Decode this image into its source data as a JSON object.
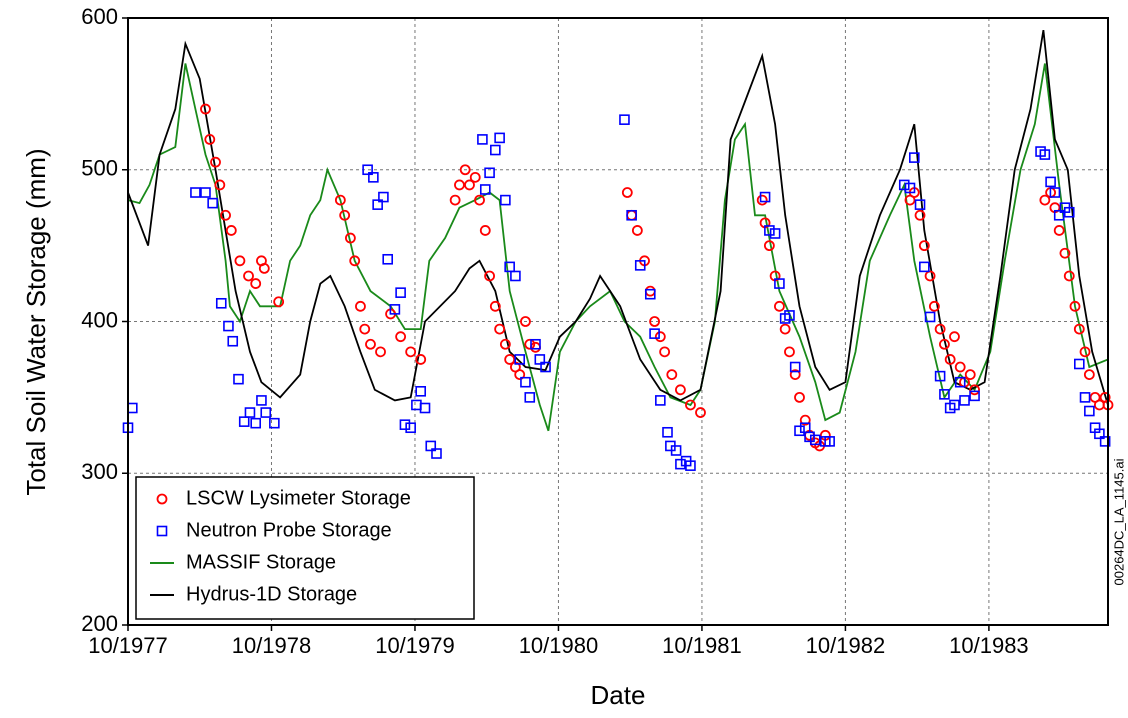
{
  "chart_data": {
    "type": "mixed",
    "xlabel": "Date",
    "ylabel": "Total Soil Water Storage (mm)",
    "annotation": "00264DC_LA_1145.ai",
    "xlim": [
      1977.75,
      1984.58
    ],
    "ylim": [
      200,
      600
    ],
    "xticks": [
      {
        "value": 1977.75,
        "label": "10/1977"
      },
      {
        "value": 1978.75,
        "label": "10/1978"
      },
      {
        "value": 1979.75,
        "label": "10/1979"
      },
      {
        "value": 1980.75,
        "label": "10/1980"
      },
      {
        "value": 1981.75,
        "label": "10/1981"
      },
      {
        "value": 1982.75,
        "label": "10/1982"
      },
      {
        "value": 1983.75,
        "label": "10/1983"
      }
    ],
    "yticks": [
      200,
      300,
      400,
      500,
      600
    ],
    "grid": true,
    "legend": "lower left",
    "series": [
      {
        "name": "LSCW Lysimeter Storage",
        "color": "#ff0000",
        "marker": "circle",
        "x": [
          1978.29,
          1978.32,
          1978.36,
          1978.39,
          1978.43,
          1978.47,
          1978.53,
          1978.59,
          1978.64,
          1978.68,
          1978.7,
          1978.8,
          1979.23,
          1979.26,
          1979.3,
          1979.33,
          1979.37,
          1979.4,
          1979.44,
          1979.51,
          1979.58,
          1979.65,
          1979.72,
          1979.79,
          1980.03,
          1980.06,
          1980.1,
          1980.13,
          1980.17,
          1980.2,
          1980.24,
          1980.27,
          1980.31,
          1980.34,
          1980.38,
          1980.41,
          1980.45,
          1980.48,
          1980.52,
          1980.55,
          1980.59,
          1981.23,
          1981.26,
          1981.3,
          1981.35,
          1981.39,
          1981.42,
          1981.46,
          1981.49,
          1981.54,
          1981.6,
          1981.67,
          1981.74,
          1982.17,
          1982.19,
          1982.22,
          1982.26,
          1982.29,
          1982.33,
          1982.36,
          1982.4,
          1982.43,
          1982.47,
          1982.5,
          1982.54,
          1982.57,
          1982.61,
          1983.2,
          1983.23,
          1983.27,
          1983.3,
          1983.34,
          1983.37,
          1983.41,
          1983.44,
          1983.48,
          1983.51,
          1983.55,
          1983.58,
          1983.62,
          1983.65,
          1984.14,
          1984.18,
          1984.21,
          1984.24,
          1984.28,
          1984.31,
          1984.35,
          1984.38,
          1984.42,
          1984.45,
          1984.49,
          1984.52,
          1984.56,
          1984.58
        ],
        "values": [
          540,
          520,
          505,
          490,
          470,
          460,
          440,
          430,
          425,
          440,
          435,
          413,
          480,
          470,
          455,
          440,
          410,
          395,
          385,
          380,
          405,
          390,
          380,
          375,
          480,
          490,
          500,
          490,
          495,
          480,
          460,
          430,
          410,
          395,
          385,
          375,
          370,
          365,
          400,
          385,
          383,
          485,
          470,
          460,
          440,
          420,
          400,
          390,
          380,
          365,
          355,
          345,
          340,
          480,
          465,
          450,
          430,
          410,
          395,
          380,
          365,
          350,
          335,
          325,
          320,
          318,
          325,
          480,
          485,
          470,
          450,
          430,
          410,
          395,
          385,
          375,
          390,
          370,
          360,
          365,
          355,
          480,
          485,
          475,
          460,
          445,
          430,
          410,
          395,
          380,
          365,
          350,
          345,
          350,
          345
        ]
      },
      {
        "name": "Neutron Probe Storage",
        "color": "#0000ff",
        "marker": "square",
        "x": [
          1977.75,
          1977.78,
          1978.22,
          1978.29,
          1978.34,
          1978.4,
          1978.45,
          1978.48,
          1978.52,
          1978.56,
          1978.6,
          1978.64,
          1978.68,
          1978.71,
          1978.77,
          1979.42,
          1979.46,
          1979.49,
          1979.53,
          1979.56,
          1979.61,
          1979.65,
          1979.68,
          1979.72,
          1979.76,
          1979.79,
          1979.82,
          1979.86,
          1979.9,
          1980.22,
          1980.24,
          1980.27,
          1980.31,
          1980.34,
          1980.38,
          1980.41,
          1980.45,
          1980.48,
          1980.52,
          1980.55,
          1980.59,
          1980.62,
          1980.66,
          1981.21,
          1981.26,
          1981.32,
          1981.39,
          1981.42,
          1981.46,
          1981.51,
          1981.53,
          1981.57,
          1981.6,
          1981.64,
          1981.67,
          1982.19,
          1982.22,
          1982.26,
          1982.29,
          1982.33,
          1982.36,
          1982.4,
          1982.43,
          1982.47,
          1982.5,
          1982.54,
          1982.61,
          1982.64,
          1983.16,
          1983.2,
          1983.23,
          1983.27,
          1983.3,
          1983.34,
          1983.41,
          1983.44,
          1983.48,
          1983.51,
          1983.55,
          1983.58,
          1983.65,
          1984.11,
          1984.14,
          1984.18,
          1984.21,
          1984.24,
          1984.28,
          1984.31,
          1984.38,
          1984.42,
          1984.45,
          1984.49,
          1984.52,
          1984.56
        ],
        "values": [
          330,
          343,
          485,
          485,
          478,
          412,
          397,
          387,
          362,
          334,
          340,
          333,
          348,
          340,
          333,
          500,
          495,
          477,
          482,
          441,
          408,
          419,
          332,
          330,
          345,
          354,
          343,
          318,
          313,
          520,
          487,
          498,
          513,
          521,
          480,
          436,
          430,
          375,
          360,
          350,
          385,
          375,
          370,
          533,
          470,
          437,
          418,
          392,
          348,
          327,
          318,
          315,
          306,
          308,
          305,
          482,
          460,
          458,
          425,
          402,
          404,
          370,
          328,
          330,
          324,
          322,
          321,
          321,
          490,
          488,
          508,
          477,
          436,
          403,
          364,
          352,
          343,
          345,
          360,
          348,
          351,
          512,
          510,
          492,
          485,
          470,
          475,
          472,
          372,
          350,
          341,
          330,
          326,
          321
        ]
      },
      {
        "name": "MASSIF Storage",
        "color": "#1a8a1a",
        "marker": "line",
        "x": [
          1977.75,
          1977.83,
          1977.9,
          1977.97,
          1978.08,
          1978.15,
          1978.22,
          1978.29,
          1978.36,
          1978.43,
          1978.46,
          1978.53,
          1978.6,
          1978.67,
          1978.81,
          1978.88,
          1978.95,
          1979.02,
          1979.09,
          1979.14,
          1979.23,
          1979.33,
          1979.44,
          1979.58,
          1979.68,
          1979.79,
          1979.85,
          1979.96,
          1980.06,
          1980.17,
          1980.27,
          1980.34,
          1980.41,
          1980.52,
          1980.62,
          1980.68,
          1980.76,
          1980.87,
          1980.97,
          1981.11,
          1981.21,
          1981.32,
          1981.42,
          1981.53,
          1981.67,
          1981.74,
          1981.84,
          1981.91,
          1981.98,
          1982.05,
          1982.12,
          1982.19,
          1982.29,
          1982.43,
          1982.54,
          1982.61,
          1982.71,
          1982.82,
          1982.92,
          1983.06,
          1983.16,
          1983.23,
          1983.34,
          1983.44,
          1983.55,
          1983.65,
          1983.76,
          1983.86,
          1983.97,
          1984.07,
          1984.14,
          1984.24,
          1984.35,
          1984.45,
          1984.58
        ],
        "values": [
          480,
          478,
          490,
          510,
          515,
          570,
          540,
          510,
          490,
          440,
          410,
          400,
          420,
          410,
          410,
          440,
          450,
          470,
          480,
          500,
          480,
          440,
          420,
          410,
          395,
          395,
          440,
          455,
          475,
          480,
          485,
          480,
          420,
          380,
          345,
          328,
          380,
          400,
          410,
          420,
          400,
          390,
          370,
          350,
          345,
          355,
          400,
          480,
          520,
          530,
          470,
          470,
          420,
          390,
          360,
          335,
          340,
          380,
          440,
          470,
          490,
          440,
          390,
          350,
          365,
          355,
          380,
          440,
          500,
          530,
          570,
          490,
          410,
          370,
          375
        ]
      },
      {
        "name": "Hydrus-1D Storage",
        "color": "#000000",
        "marker": "line",
        "x": [
          1977.75,
          1977.89,
          1977.97,
          1978.08,
          1978.15,
          1978.25,
          1978.36,
          1978.5,
          1978.6,
          1978.68,
          1978.81,
          1978.95,
          1979.02,
          1979.09,
          1979.16,
          1979.26,
          1979.37,
          1979.47,
          1979.61,
          1979.72,
          1979.82,
          1980.03,
          1980.13,
          1980.2,
          1980.31,
          1980.41,
          1980.52,
          1980.66,
          1980.76,
          1980.87,
          1980.97,
          1981.04,
          1981.18,
          1981.32,
          1981.46,
          1981.6,
          1981.74,
          1981.88,
          1981.95,
          1982.05,
          1982.17,
          1982.26,
          1982.33,
          1982.43,
          1982.54,
          1982.64,
          1982.75,
          1982.85,
          1982.99,
          1983.13,
          1983.23,
          1983.3,
          1983.41,
          1983.51,
          1983.62,
          1983.72,
          1983.83,
          1983.93,
          1984.04,
          1984.13,
          1984.21,
          1984.3,
          1984.38,
          1984.47,
          1984.58
        ],
        "values": [
          485,
          450,
          510,
          540,
          583,
          560,
          500,
          420,
          380,
          360,
          350,
          365,
          400,
          425,
          430,
          410,
          380,
          355,
          348,
          350,
          400,
          420,
          435,
          440,
          420,
          380,
          370,
          368,
          390,
          400,
          415,
          430,
          410,
          375,
          355,
          348,
          355,
          420,
          520,
          545,
          575,
          530,
          470,
          410,
          370,
          355,
          360,
          430,
          470,
          500,
          530,
          460,
          400,
          360,
          355,
          360,
          430,
          500,
          540,
          592,
          520,
          500,
          430,
          380,
          345
        ]
      }
    ]
  }
}
